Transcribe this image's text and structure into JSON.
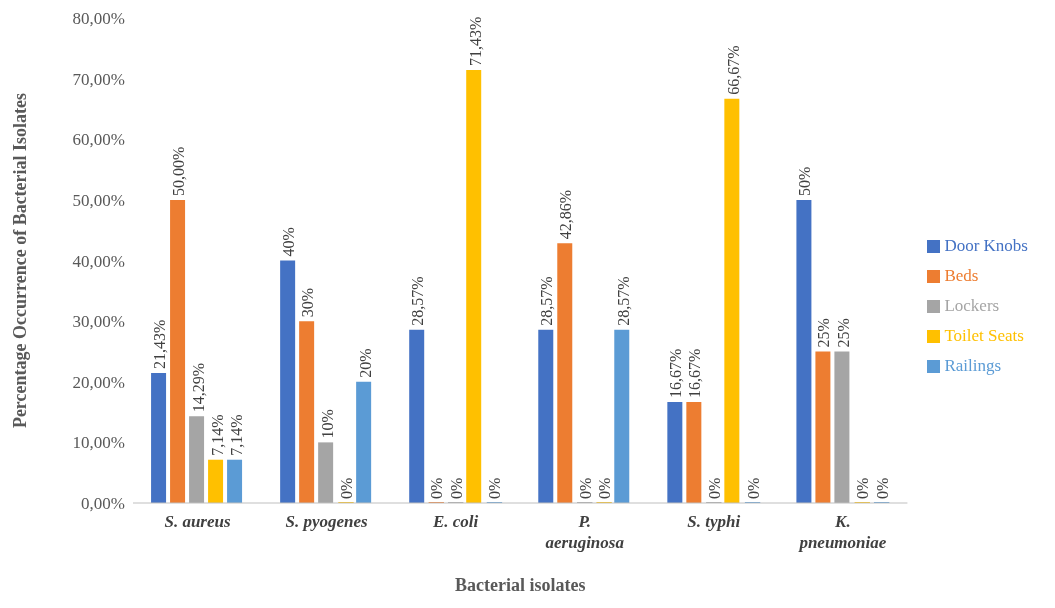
{
  "chart_data": {
    "type": "bar",
    "xlabel": "Bacterial isolates",
    "ylabel": "Percentage Occurrence of Bacterial Isolates",
    "categories": [
      "S. aureus",
      "S. pyogenes",
      "E. coli",
      "P. aeruginosa",
      "S. typhi",
      "K. pneumoniae"
    ],
    "series": [
      {
        "name": "Door Knobs",
        "color": "#4472c4",
        "values": [
          21.43,
          40,
          28.57,
          28.57,
          16.67,
          50
        ],
        "value_labels": [
          "21,43%",
          "40%",
          "28,57%",
          "28,57%",
          "16,67%",
          "50%"
        ]
      },
      {
        "name": "Beds",
        "color": "#ed7d31",
        "values": [
          50,
          30,
          0,
          42.86,
          16.67,
          25
        ],
        "value_labels": [
          "50,00%",
          "30%",
          "0%",
          "42,86%",
          "16,67%",
          "25%"
        ]
      },
      {
        "name": "Lockers",
        "color": "#a5a5a5",
        "values": [
          14.29,
          10,
          0,
          0,
          0,
          25
        ],
        "value_labels": [
          "14,29%",
          "10%",
          "0%",
          "0%",
          "0%",
          "25%"
        ]
      },
      {
        "name": "Toilet Seats",
        "color": "#ffc000",
        "values": [
          7.14,
          0,
          71.43,
          0,
          66.67,
          0
        ],
        "value_labels": [
          "7,14%",
          "0%",
          "71,43%",
          "0%",
          "66,67%",
          "0%"
        ]
      },
      {
        "name": "Railings",
        "color": "#5b9bd5",
        "values": [
          7.14,
          20,
          0,
          28.57,
          0,
          0
        ],
        "value_labels": [
          "7,14%",
          "20%",
          "0%",
          "28,57%",
          "0%",
          "0%"
        ]
      }
    ],
    "ylim": [
      0,
      80
    ],
    "yticks": [
      {
        "value": 0,
        "label": "0,00%"
      },
      {
        "value": 10,
        "label": "10,00%"
      },
      {
        "value": 20,
        "label": "20,00%"
      },
      {
        "value": 30,
        "label": "30,00%"
      },
      {
        "value": 40,
        "label": "40,00%"
      },
      {
        "value": 50,
        "label": "50,00%"
      },
      {
        "value": 60,
        "label": "60,00%"
      },
      {
        "value": 70,
        "label": "70,00%"
      },
      {
        "value": 80,
        "label": "80,00%"
      }
    ],
    "grid": false,
    "legend": "right"
  }
}
